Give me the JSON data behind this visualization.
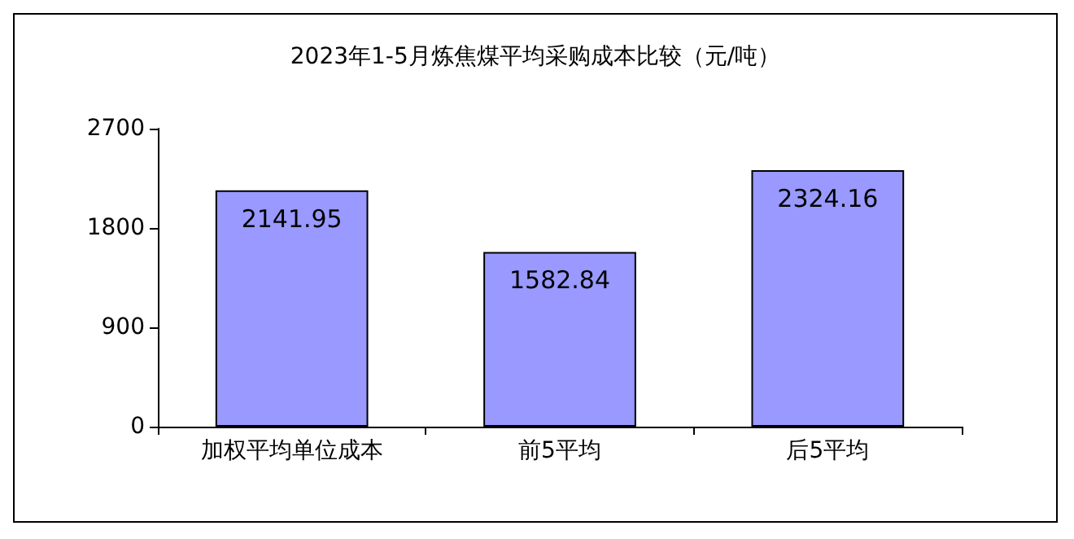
{
  "chart_data": {
    "type": "bar",
    "title": "2023年1-5月炼焦煤平均采购成本比较（元/吨）",
    "categories": [
      "加权平均单位成本",
      "前5平均",
      "后5平均"
    ],
    "values": [
      2141.95,
      1582.84,
      2324.16
    ],
    "color": "#9999ff",
    "ylim": [
      0,
      2700
    ],
    "yticks": [
      0,
      900,
      1800,
      2700
    ],
    "grid": false,
    "data_labels": true
  }
}
